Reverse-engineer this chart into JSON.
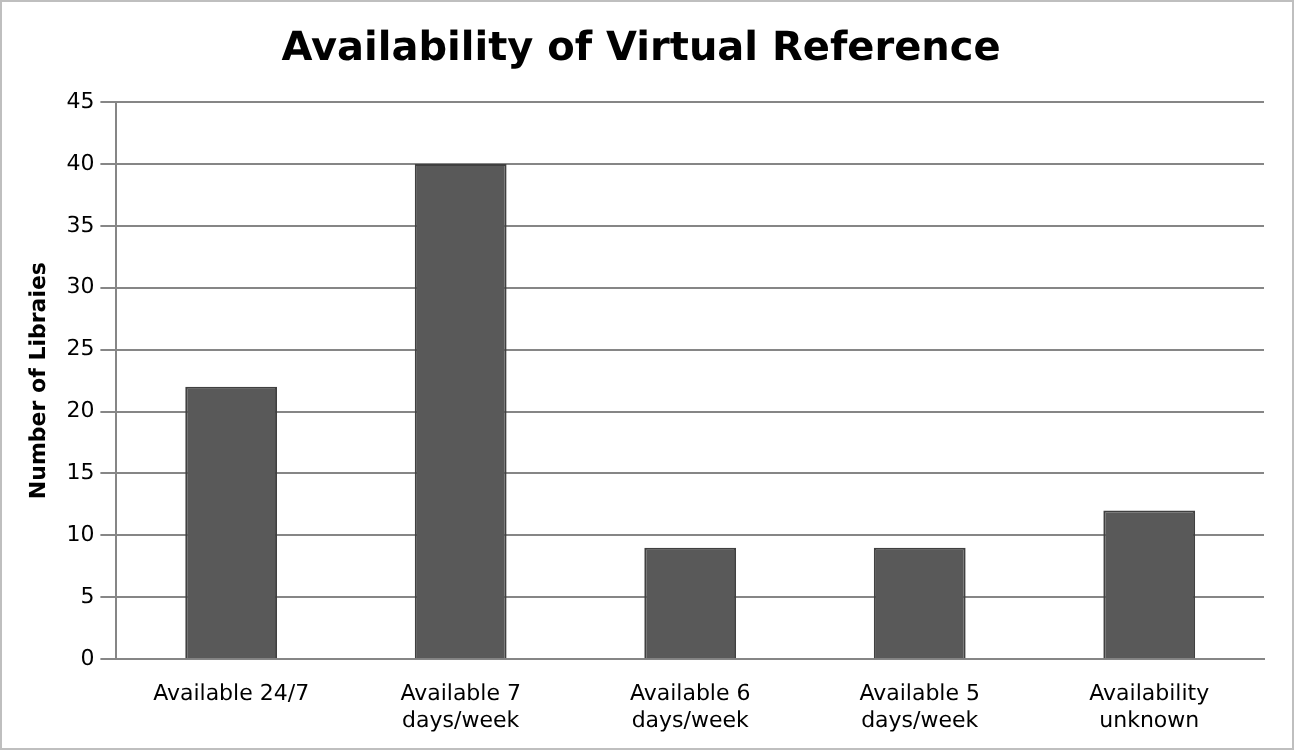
{
  "chart_data": {
    "type": "bar",
    "title": "Availability of Virtual Reference",
    "ylabel": "Number of Libraies",
    "categories": [
      "Available 24/7",
      "Available 7 days/week",
      "Available 6 days/week",
      "Available 5 days/week",
      "Availability unknown"
    ],
    "values": [
      22,
      40,
      9,
      9,
      12
    ],
    "color": "#595959",
    "ylim": [
      0,
      45
    ],
    "yticks": [
      0,
      5,
      10,
      15,
      20,
      25,
      30,
      35,
      40,
      45
    ],
    "grid": "y",
    "legend": false
  }
}
